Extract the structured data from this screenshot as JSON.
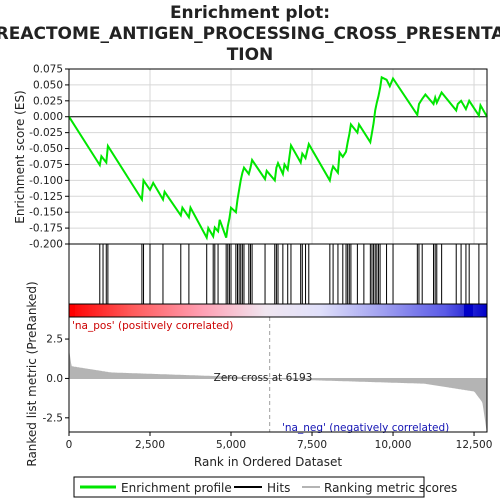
{
  "title_lines": [
    "Enrichment plot:",
    "REACTOME_ANTIGEN_PROCESSING_CROSS_PRESENTA",
    "TION"
  ],
  "chart_data": {
    "type": "line",
    "n_genes": 12900,
    "zero_cross": 6193,
    "x_ticks": [
      0,
      2500,
      5000,
      7500,
      10000,
      12500
    ],
    "x_tick_labels": [
      "0",
      "2,500",
      "5,000",
      "7,500",
      "10,000",
      "12,500"
    ],
    "xlabel": "Rank in Ordered Dataset",
    "es_ylabel": "Enrichment score (ES)",
    "es_ylim": [
      -0.2,
      0.075
    ],
    "es_ticks": [
      0.075,
      0.05,
      0.025,
      0.0,
      -0.025,
      -0.05,
      -0.075,
      -0.1,
      -0.125,
      -0.15,
      -0.175,
      -0.2
    ],
    "es_tick_labels": [
      "0.075",
      "0.050",
      "0.025",
      "0.000",
      "-0.025",
      "-0.050",
      "-0.075",
      "-0.100",
      "-0.125",
      "-0.150",
      "-0.175",
      "-0.200"
    ],
    "metric_ylabel": "Ranked list metric (PreRanked)",
    "metric_ylim": [
      -3.4,
      3.9
    ],
    "metric_ticks": [
      2.5,
      0.0,
      -2.5
    ],
    "metric_tick_labels": [
      "2.5",
      "0.0",
      "-2.5"
    ],
    "hits": [
      950,
      1050,
      1150,
      1200,
      2250,
      2300,
      2500,
      2900,
      3450,
      3700,
      4250,
      4450,
      4500,
      4600,
      4850,
      4900,
      4950,
      5000,
      5150,
      5200,
      5250,
      5300,
      5350,
      5400,
      5550,
      5600,
      5650,
      6050,
      6350,
      6400,
      6450,
      6600,
      6750,
      6850,
      7150,
      7200,
      7300,
      7400,
      8050,
      8150,
      8300,
      8450,
      8550,
      8600,
      8650,
      8700,
      8900,
      9100,
      9300,
      9350,
      9400,
      9450,
      9500,
      9550,
      9600,
      9800,
      10000,
      10750,
      10800,
      10900,
      11250,
      11300,
      11350,
      11500,
      11950,
      12100,
      12250,
      12350,
      12650
    ],
    "es_points": [
      [
        0,
        0.0
      ],
      [
        950,
        -0.076
      ],
      [
        1000,
        -0.062
      ],
      [
        1150,
        -0.072
      ],
      [
        1200,
        -0.046
      ],
      [
        2250,
        -0.13
      ],
      [
        2300,
        -0.1
      ],
      [
        2500,
        -0.115
      ],
      [
        2600,
        -0.104
      ],
      [
        2900,
        -0.13
      ],
      [
        2950,
        -0.118
      ],
      [
        3450,
        -0.155
      ],
      [
        3500,
        -0.143
      ],
      [
        3700,
        -0.158
      ],
      [
        3750,
        -0.143
      ],
      [
        4250,
        -0.19
      ],
      [
        4300,
        -0.175
      ],
      [
        4450,
        -0.188
      ],
      [
        4500,
        -0.174
      ],
      [
        4600,
        -0.18
      ],
      [
        4650,
        -0.162
      ],
      [
        4850,
        -0.19
      ],
      [
        4900,
        -0.172
      ],
      [
        4950,
        -0.16
      ],
      [
        5000,
        -0.143
      ],
      [
        5150,
        -0.15
      ],
      [
        5200,
        -0.13
      ],
      [
        5250,
        -0.115
      ],
      [
        5300,
        -0.1
      ],
      [
        5350,
        -0.088
      ],
      [
        5400,
        -0.08
      ],
      [
        5550,
        -0.09
      ],
      [
        5600,
        -0.08
      ],
      [
        5650,
        -0.068
      ],
      [
        6050,
        -0.098
      ],
      [
        6100,
        -0.085
      ],
      [
        6350,
        -0.1
      ],
      [
        6400,
        -0.08
      ],
      [
        6450,
        -0.073
      ],
      [
        6600,
        -0.09
      ],
      [
        6650,
        -0.075
      ],
      [
        6750,
        -0.083
      ],
      [
        6850,
        -0.045
      ],
      [
        7150,
        -0.072
      ],
      [
        7200,
        -0.058
      ],
      [
        7300,
        -0.065
      ],
      [
        7400,
        -0.043
      ],
      [
        8050,
        -0.1
      ],
      [
        8100,
        -0.086
      ],
      [
        8150,
        -0.078
      ],
      [
        8300,
        -0.088
      ],
      [
        8350,
        -0.056
      ],
      [
        8450,
        -0.063
      ],
      [
        8550,
        -0.055
      ],
      [
        8600,
        -0.04
      ],
      [
        8650,
        -0.028
      ],
      [
        8700,
        -0.012
      ],
      [
        8900,
        -0.025
      ],
      [
        8950,
        -0.012
      ],
      [
        9300,
        -0.04
      ],
      [
        9350,
        -0.025
      ],
      [
        9400,
        -0.01
      ],
      [
        9450,
        0.01
      ],
      [
        9500,
        0.022
      ],
      [
        9550,
        0.032
      ],
      [
        9600,
        0.045
      ],
      [
        9650,
        0.062
      ],
      [
        9800,
        0.058
      ],
      [
        9900,
        0.048
      ],
      [
        10000,
        0.06
      ],
      [
        10750,
        0.003
      ],
      [
        10800,
        0.02
      ],
      [
        10900,
        0.028
      ],
      [
        11000,
        0.035
      ],
      [
        11250,
        0.02
      ],
      [
        11300,
        0.03
      ],
      [
        11350,
        0.022
      ],
      [
        11500,
        0.038
      ],
      [
        11950,
        0.01
      ],
      [
        12000,
        0.02
      ],
      [
        12100,
        0.025
      ],
      [
        12250,
        0.012
      ],
      [
        12350,
        0.025
      ],
      [
        12650,
        0.002
      ],
      [
        12700,
        0.018
      ],
      [
        12900,
        0.0
      ]
    ]
  },
  "labels": {
    "pos_label": "'na_pos' (positively correlated)",
    "neg_label": "'na_neg' (negatively correlated)",
    "zero_cross_label": "Zero cross at 6193"
  },
  "legend": {
    "items": [
      "Enrichment profile",
      "Hits",
      "Ranking metric scores"
    ]
  },
  "colors": {
    "profile": "#00e600",
    "hits": "#000000",
    "metric": "#b4b4b4",
    "pos_text": "#cc0000",
    "neg_text": "#1414b4",
    "grid": "#d7d7d7"
  }
}
